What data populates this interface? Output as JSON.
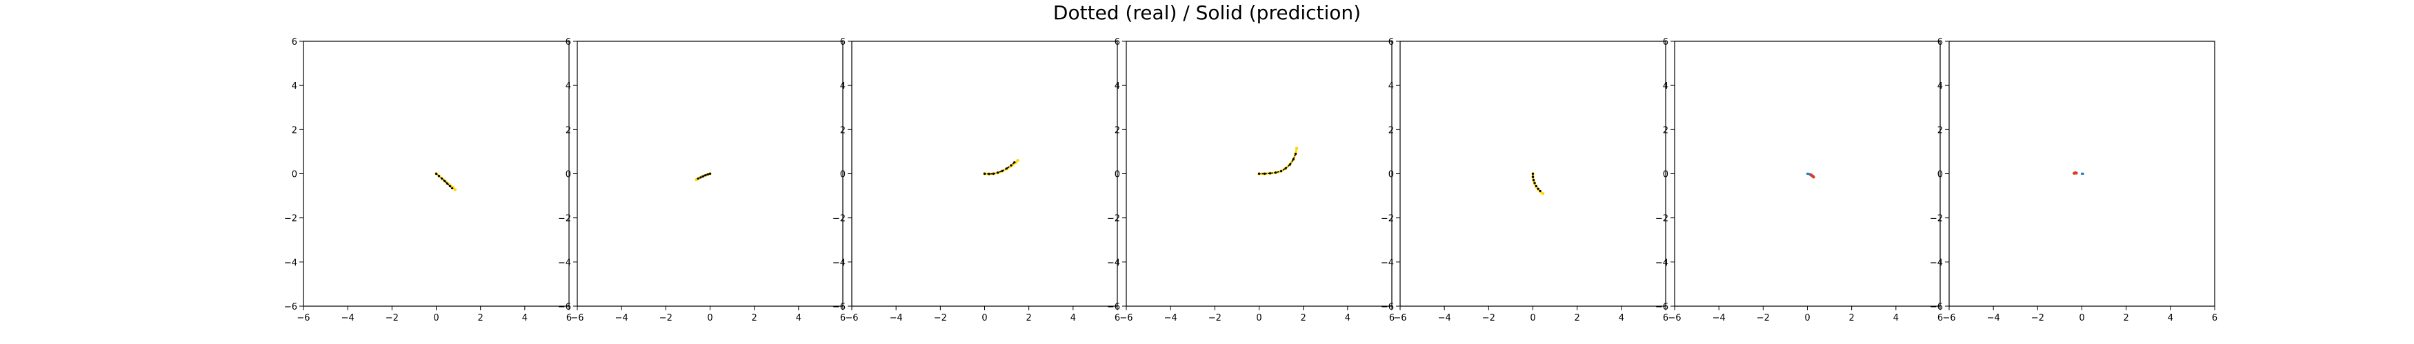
{
  "figure": {
    "title": "Dotted (real) / Solid (prediction)"
  },
  "colors": {
    "axes": "#000000",
    "background": "#ffffff",
    "real_dots": "#000000",
    "prediction": "#ffd700",
    "prediction_alt": "#dd3b2a",
    "real_alt": "#1f77b4"
  },
  "chart_data": [
    {
      "type": "line",
      "xlim": [
        -6,
        6
      ],
      "ylim": [
        -6,
        6
      ],
      "xticks": [
        -6,
        -4,
        -2,
        0,
        2,
        4,
        6
      ],
      "yticks": [
        -6,
        -4,
        -2,
        0,
        2,
        4,
        6
      ],
      "grid": false,
      "series": [
        {
          "style": "solid",
          "color": "#ffd700",
          "x": [
            0,
            0.15,
            0.3,
            0.45,
            0.6,
            0.75,
            0.85
          ],
          "y": [
            0,
            -0.12,
            -0.25,
            -0.38,
            -0.5,
            -0.62,
            -0.72
          ]
        },
        {
          "style": "dotted",
          "color": "#000000",
          "x": [
            0,
            0.12,
            0.25,
            0.38,
            0.5,
            0.62,
            0.72
          ],
          "y": [
            0,
            -0.1,
            -0.22,
            -0.33,
            -0.45,
            -0.56,
            -0.66
          ]
        }
      ]
    },
    {
      "type": "line",
      "xlim": [
        -6,
        6
      ],
      "ylim": [
        -6,
        6
      ],
      "xticks": [
        -6,
        -4,
        -2,
        0,
        2,
        4,
        6
      ],
      "yticks": [
        -6,
        -4,
        -2,
        0,
        2,
        4,
        6
      ],
      "grid": false,
      "series": [
        {
          "style": "solid",
          "color": "#ffd700",
          "x": [
            0,
            -0.12,
            -0.25,
            -0.38,
            -0.5,
            -0.62
          ],
          "y": [
            0,
            -0.04,
            -0.09,
            -0.14,
            -0.2,
            -0.27
          ]
        },
        {
          "style": "dotted",
          "color": "#000000",
          "x": [
            0,
            -0.1,
            -0.21,
            -0.32,
            -0.43,
            -0.54
          ],
          "y": [
            0,
            -0.03,
            -0.07,
            -0.12,
            -0.17,
            -0.22
          ]
        }
      ]
    },
    {
      "type": "line",
      "xlim": [
        -6,
        6
      ],
      "ylim": [
        -6,
        6
      ],
      "xticks": [
        -6,
        -4,
        -2,
        0,
        2,
        4,
        6
      ],
      "yticks": [
        -6,
        -4,
        -2,
        0,
        2,
        4,
        6
      ],
      "grid": false,
      "series": [
        {
          "style": "solid",
          "color": "#ffd700",
          "x": [
            0,
            0.2,
            0.4,
            0.6,
            0.8,
            1.0,
            1.2,
            1.4,
            1.5
          ],
          "y": [
            0,
            -0.01,
            0,
            0.04,
            0.12,
            0.22,
            0.35,
            0.5,
            0.6
          ]
        },
        {
          "style": "dotted",
          "color": "#000000",
          "x": [
            0,
            0.2,
            0.4,
            0.6,
            0.8,
            1.0,
            1.2,
            1.35
          ],
          "y": [
            0,
            -0.01,
            0,
            0.05,
            0.13,
            0.24,
            0.38,
            0.52
          ]
        }
      ]
    },
    {
      "type": "line",
      "xlim": [
        -6,
        6
      ],
      "ylim": [
        -6,
        6
      ],
      "xticks": [
        -6,
        -4,
        -2,
        0,
        2,
        4,
        6
      ],
      "yticks": [
        -6,
        -4,
        -2,
        0,
        2,
        4,
        6
      ],
      "grid": false,
      "series": [
        {
          "style": "solid",
          "color": "#ffd700",
          "x": [
            0,
            0.25,
            0.5,
            0.75,
            1.0,
            1.2,
            1.4,
            1.55,
            1.65,
            1.7
          ],
          "y": [
            0,
            0,
            0.02,
            0.05,
            0.12,
            0.24,
            0.42,
            0.65,
            0.9,
            1.15
          ]
        },
        {
          "style": "dotted",
          "color": "#000000",
          "x": [
            0,
            0.25,
            0.5,
            0.75,
            1.0,
            1.2,
            1.4,
            1.55,
            1.65
          ],
          "y": [
            0,
            0,
            0.02,
            0.05,
            0.12,
            0.24,
            0.42,
            0.65,
            0.9
          ]
        }
      ]
    },
    {
      "type": "line",
      "xlim": [
        -6,
        6
      ],
      "ylim": [
        -6,
        6
      ],
      "xticks": [
        -6,
        -4,
        -2,
        0,
        2,
        4,
        6
      ],
      "yticks": [
        -6,
        -4,
        -2,
        0,
        2,
        4,
        6
      ],
      "grid": false,
      "series": [
        {
          "style": "solid",
          "color": "#ffd700",
          "x": [
            0,
            0,
            0.03,
            0.08,
            0.15,
            0.25,
            0.35,
            0.45
          ],
          "y": [
            0,
            -0.15,
            -0.3,
            -0.45,
            -0.6,
            -0.72,
            -0.82,
            -0.9
          ]
        },
        {
          "style": "dotted",
          "color": "#000000",
          "x": [
            0,
            0,
            0.03,
            0.08,
            0.15,
            0.24,
            0.33
          ],
          "y": [
            0,
            -0.14,
            -0.28,
            -0.42,
            -0.56,
            -0.68,
            -0.78
          ]
        }
      ]
    },
    {
      "type": "line",
      "xlim": [
        -6,
        6
      ],
      "ylim": [
        -6,
        6
      ],
      "xticks": [
        -6,
        -4,
        -2,
        0,
        2,
        4,
        6
      ],
      "yticks": [
        -6,
        -4,
        -2,
        0,
        2,
        4,
        6
      ],
      "grid": false,
      "series": [
        {
          "style": "solid",
          "color": "#dd3b2a",
          "x": [
            0.15,
            0.2,
            0.25,
            0.28
          ],
          "y": [
            -0.05,
            -0.08,
            -0.12,
            -0.15
          ]
        },
        {
          "style": "dotted",
          "color": "#1f77b4",
          "x": [
            0,
            0.05,
            0.1
          ],
          "y": [
            0,
            -0.01,
            -0.02
          ]
        }
      ]
    },
    {
      "type": "line",
      "xlim": [
        -6,
        6
      ],
      "ylim": [
        -6,
        6
      ],
      "xticks": [
        -6,
        -4,
        -2,
        0,
        2,
        4,
        6
      ],
      "yticks": [
        -6,
        -4,
        -2,
        0,
        2,
        4,
        6
      ],
      "grid": false,
      "series": [
        {
          "style": "solid",
          "color": "#dd3b2a",
          "x": [
            -0.35,
            -0.3,
            -0.25
          ],
          "y": [
            0.02,
            0.04,
            0.03
          ]
        },
        {
          "style": "dotted",
          "color": "#1f77b4",
          "x": [
            0,
            0.05
          ],
          "y": [
            0,
            0
          ]
        }
      ]
    }
  ]
}
